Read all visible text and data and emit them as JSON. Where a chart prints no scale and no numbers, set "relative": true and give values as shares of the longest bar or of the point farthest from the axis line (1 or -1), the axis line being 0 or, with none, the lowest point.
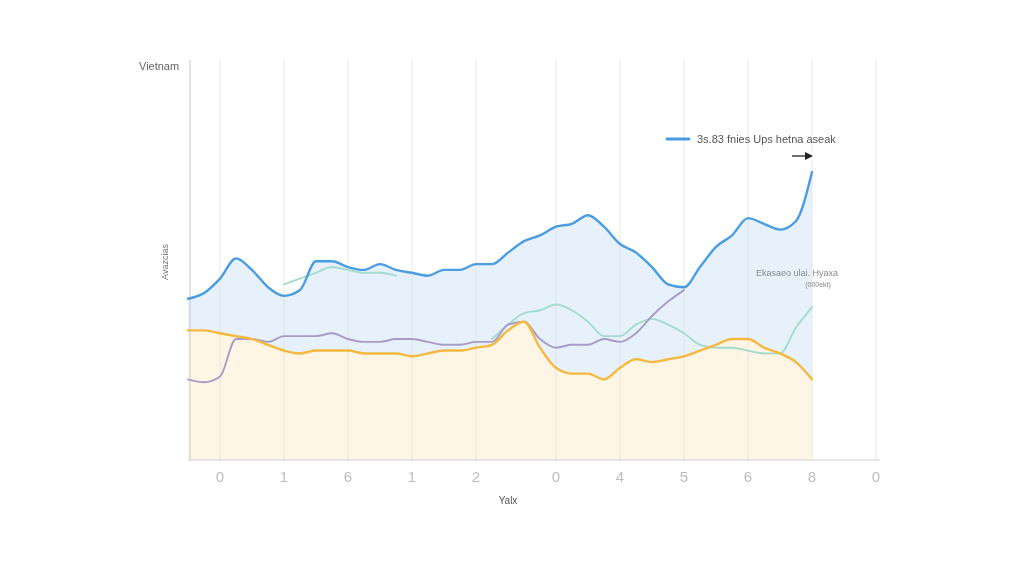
{
  "chart_data": {
    "type": "line",
    "title": "Vietnam",
    "xlabel": "Yalx",
    "ylabel": "Avazcias",
    "relative": true,
    "grid": "x",
    "legend": "top right",
    "annotations": [
      "Ekasaeo ulai. Hyaxa",
      "(000ekt)"
    ],
    "categories": [
      null,
      null,
      "0",
      null,
      null,
      null,
      "1",
      null,
      null,
      null,
      "6",
      null,
      null,
      null,
      "1",
      null,
      null,
      null,
      "2",
      null,
      null,
      null,
      null,
      "0",
      null,
      null,
      null,
      "4",
      null,
      null,
      null,
      "5",
      null,
      null,
      null,
      "6",
      null,
      null,
      null,
      "8",
      null,
      null,
      null,
      "0"
    ],
    "series": [
      {
        "name": "3s.83 fnies Ups hetna aseak",
        "type": "area",
        "color": "#4a9de0",
        "values": [
          0.56,
          0.58,
          0.63,
          0.7,
          0.66,
          0.6,
          0.57,
          0.59,
          0.69,
          0.69,
          0.67,
          0.66,
          0.68,
          0.66,
          0.65,
          0.64,
          0.66,
          0.66,
          0.68,
          0.68,
          0.72,
          0.76,
          0.78,
          0.81,
          0.82,
          0.85,
          0.81,
          0.75,
          0.72,
          0.67,
          0.61,
          0.6,
          0.67,
          0.74,
          0.78,
          0.84,
          0.82,
          0.8,
          0.83,
          1,
          null,
          null,
          null,
          null
        ]
      },
      {
        "type": "area",
        "color": "#f5b940",
        "values": [
          0.45,
          0.45,
          0.44,
          0.43,
          0.42,
          0.4,
          0.38,
          0.37,
          0.38,
          0.38,
          0.38,
          0.37,
          0.37,
          0.37,
          0.36,
          0.37,
          0.38,
          0.38,
          0.39,
          0.4,
          0.45,
          0.48,
          0.39,
          0.32,
          0.3,
          0.3,
          0.28,
          0.32,
          0.35,
          0.34,
          0.35,
          0.36,
          0.38,
          0.4,
          0.42,
          0.42,
          0.39,
          0.37,
          0.34,
          0.28,
          null,
          null,
          null,
          null
        ]
      },
      {
        "color": "#a89cc6",
        "values": [
          0.28,
          0.27,
          0.29,
          0.42,
          0.42,
          0.41,
          0.43,
          0.43,
          0.43,
          0.44,
          0.42,
          0.41,
          0.41,
          0.42,
          0.42,
          0.41,
          0.4,
          0.4,
          0.41,
          0.41,
          0.47,
          0.48,
          0.42,
          0.39,
          0.4,
          0.4,
          0.42,
          0.41,
          0.44,
          0.5,
          0.55,
          0.59,
          null,
          null,
          null,
          null,
          null,
          null,
          null,
          null,
          null,
          null,
          null,
          null
        ]
      },
      {
        "color": "#a3dccd",
        "values": [
          null,
          null,
          null,
          null,
          null,
          null,
          0.61,
          0.63,
          0.65,
          0.67,
          0.66,
          0.65,
          0.65,
          0.64,
          null,
          null,
          null,
          null,
          null,
          0.42,
          0.47,
          0.51,
          0.52,
          0.54,
          0.52,
          0.48,
          0.43,
          0.43,
          0.47,
          0.49,
          0.47,
          0.44,
          0.4,
          0.39,
          0.39,
          0.38,
          0.37,
          0.37,
          0.46,
          0.53,
          null,
          null,
          null,
          null
        ]
      }
    ]
  }
}
